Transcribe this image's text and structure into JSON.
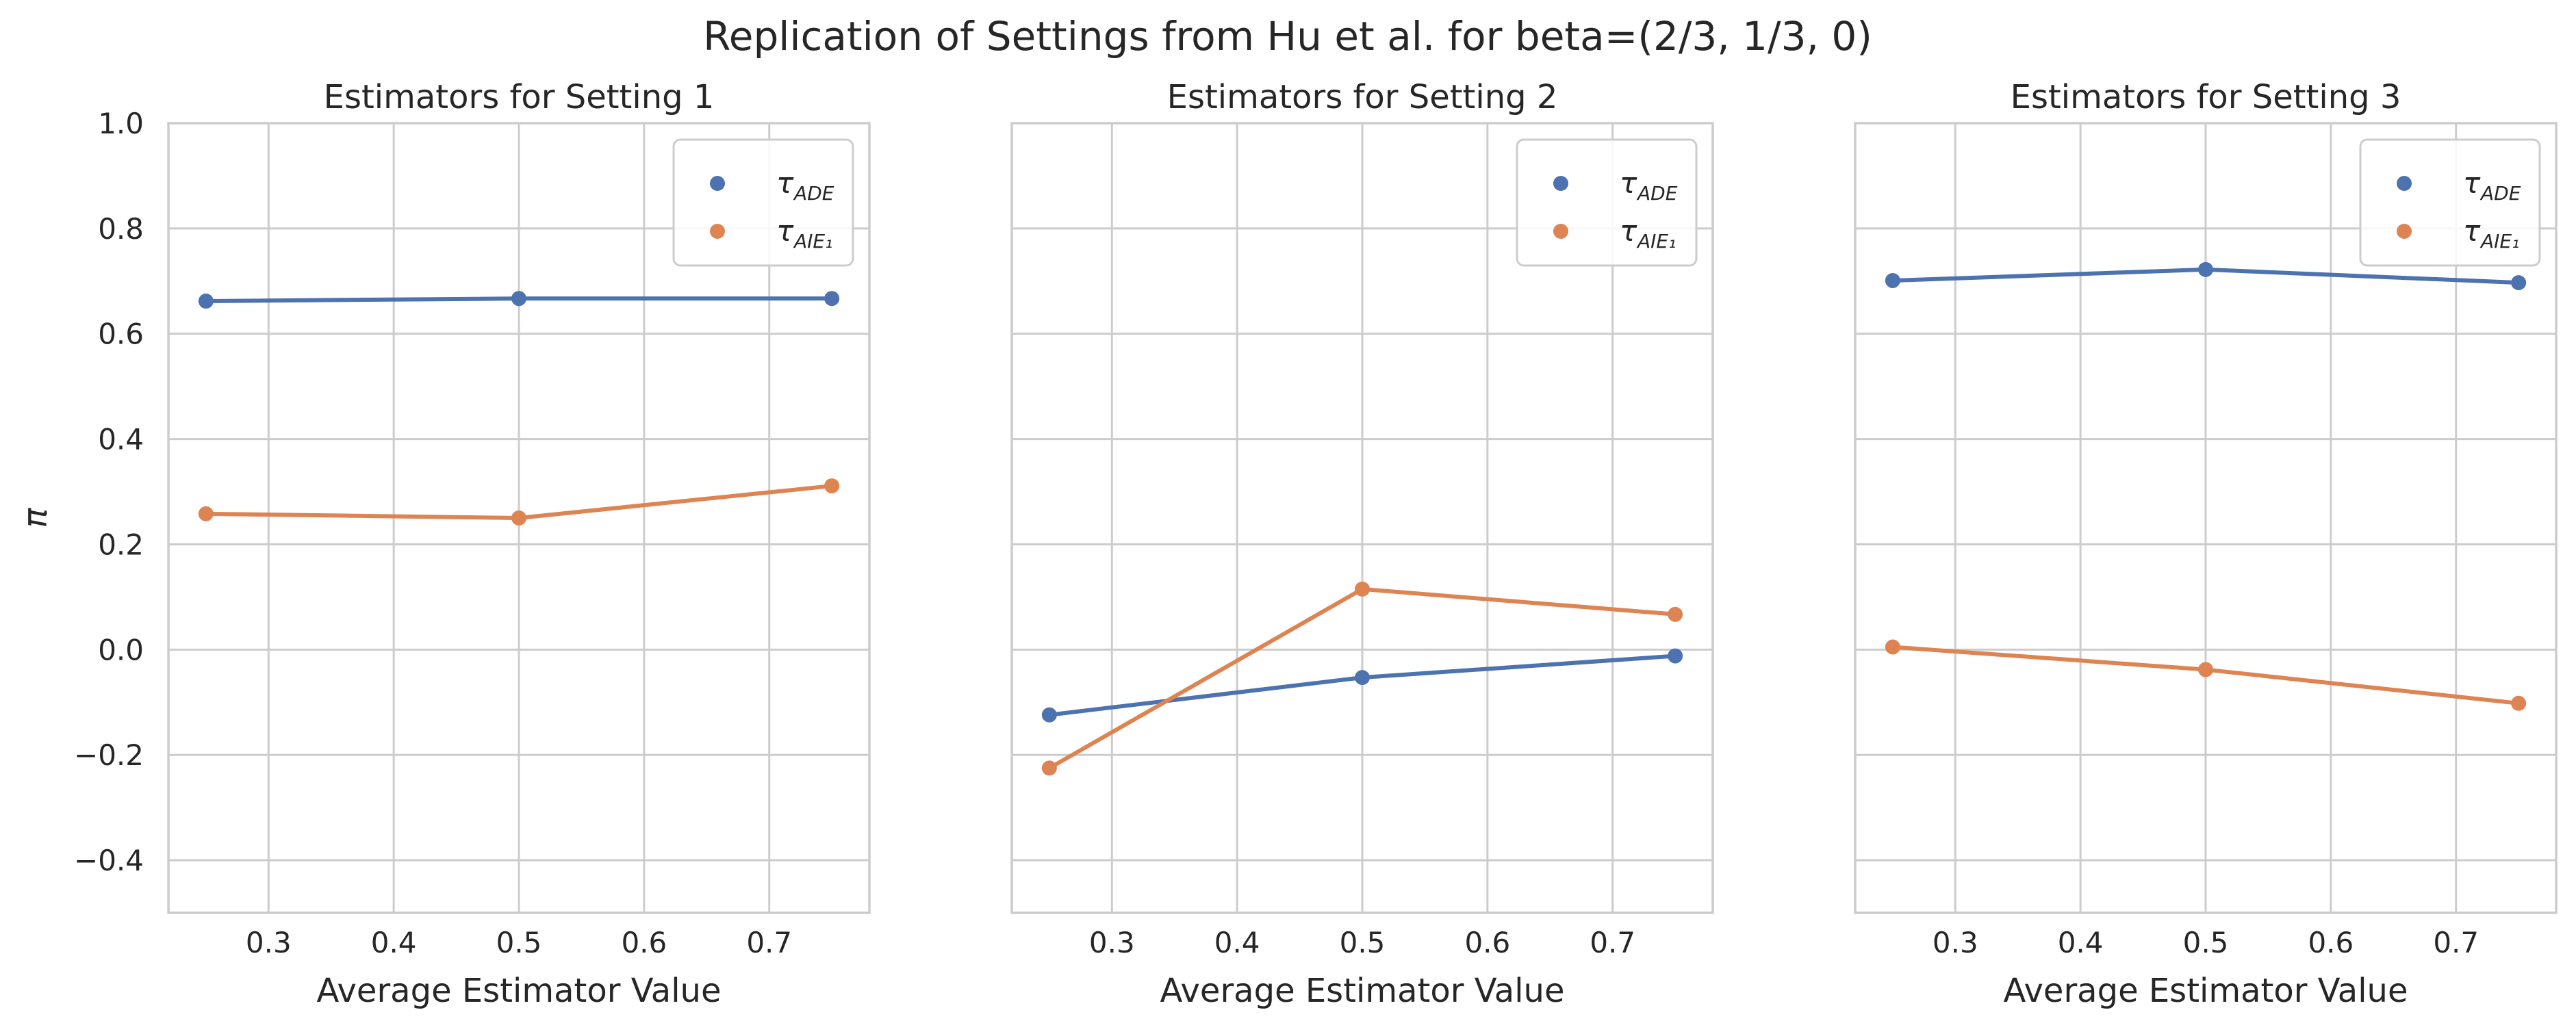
{
  "figure": {
    "title": "Replication of Settings from Hu et al. for beta=(2/3, 1/3, 0)"
  },
  "colors": {
    "tau_ade": "#4c72b0",
    "tau_aie": "#dd8452",
    "grid": "#cccccc",
    "frame": "#cccccc"
  },
  "chart_data": [
    {
      "type": "line",
      "title": "Estimators for Setting 1",
      "xlabel": "Average Estimator Value",
      "ylabel": "π",
      "xlim": [
        0.22,
        0.78
      ],
      "ylim": [
        -0.5,
        1.0
      ],
      "xticks": [
        0.3,
        0.4,
        0.5,
        0.6,
        0.7
      ],
      "yticks": [
        -0.4,
        -0.2,
        0.0,
        0.2,
        0.4,
        0.6,
        0.8,
        1.0
      ],
      "grid": true,
      "legend": "top-right",
      "x": [
        0.25,
        0.5,
        0.75
      ],
      "series": [
        {
          "name": "τ_ADE",
          "label_main": "τ",
          "label_sub": "ADE",
          "color": "#4c72b0",
          "values": [
            0.662,
            0.667,
            0.667
          ]
        },
        {
          "name": "τ_AIE1",
          "label_main": "τ",
          "label_sub": "AIE₁",
          "color": "#dd8452",
          "values": [
            0.258,
            0.25,
            0.311
          ]
        }
      ]
    },
    {
      "type": "line",
      "title": "Estimators for Setting 2",
      "xlabel": "Average Estimator Value",
      "ylabel": "",
      "xlim": [
        0.22,
        0.78
      ],
      "ylim": [
        -0.5,
        1.0
      ],
      "xticks": [
        0.3,
        0.4,
        0.5,
        0.6,
        0.7
      ],
      "yticks": [],
      "grid": true,
      "legend": "top-right",
      "x": [
        0.25,
        0.5,
        0.75
      ],
      "series": [
        {
          "name": "τ_ADE",
          "label_main": "τ",
          "label_sub": "ADE",
          "color": "#4c72b0",
          "values": [
            -0.124,
            -0.053,
            -0.012
          ]
        },
        {
          "name": "τ_AIE1",
          "label_main": "τ",
          "label_sub": "AIE₁",
          "color": "#dd8452",
          "values": [
            -0.225,
            0.115,
            0.067
          ]
        }
      ]
    },
    {
      "type": "line",
      "title": "Estimators for Setting 3",
      "xlabel": "Average Estimator Value",
      "ylabel": "",
      "xlim": [
        0.22,
        0.78
      ],
      "ylim": [
        -0.5,
        1.0
      ],
      "xticks": [
        0.3,
        0.4,
        0.5,
        0.6,
        0.7
      ],
      "yticks": [],
      "grid": true,
      "legend": "top-right",
      "x": [
        0.25,
        0.5,
        0.75
      ],
      "series": [
        {
          "name": "τ_ADE",
          "label_main": "τ",
          "label_sub": "ADE",
          "color": "#4c72b0",
          "values": [
            0.701,
            0.722,
            0.697
          ]
        },
        {
          "name": "τ_AIE1",
          "label_main": "τ",
          "label_sub": "AIE₁",
          "color": "#dd8452",
          "values": [
            0.005,
            -0.038,
            -0.102
          ]
        }
      ]
    }
  ]
}
